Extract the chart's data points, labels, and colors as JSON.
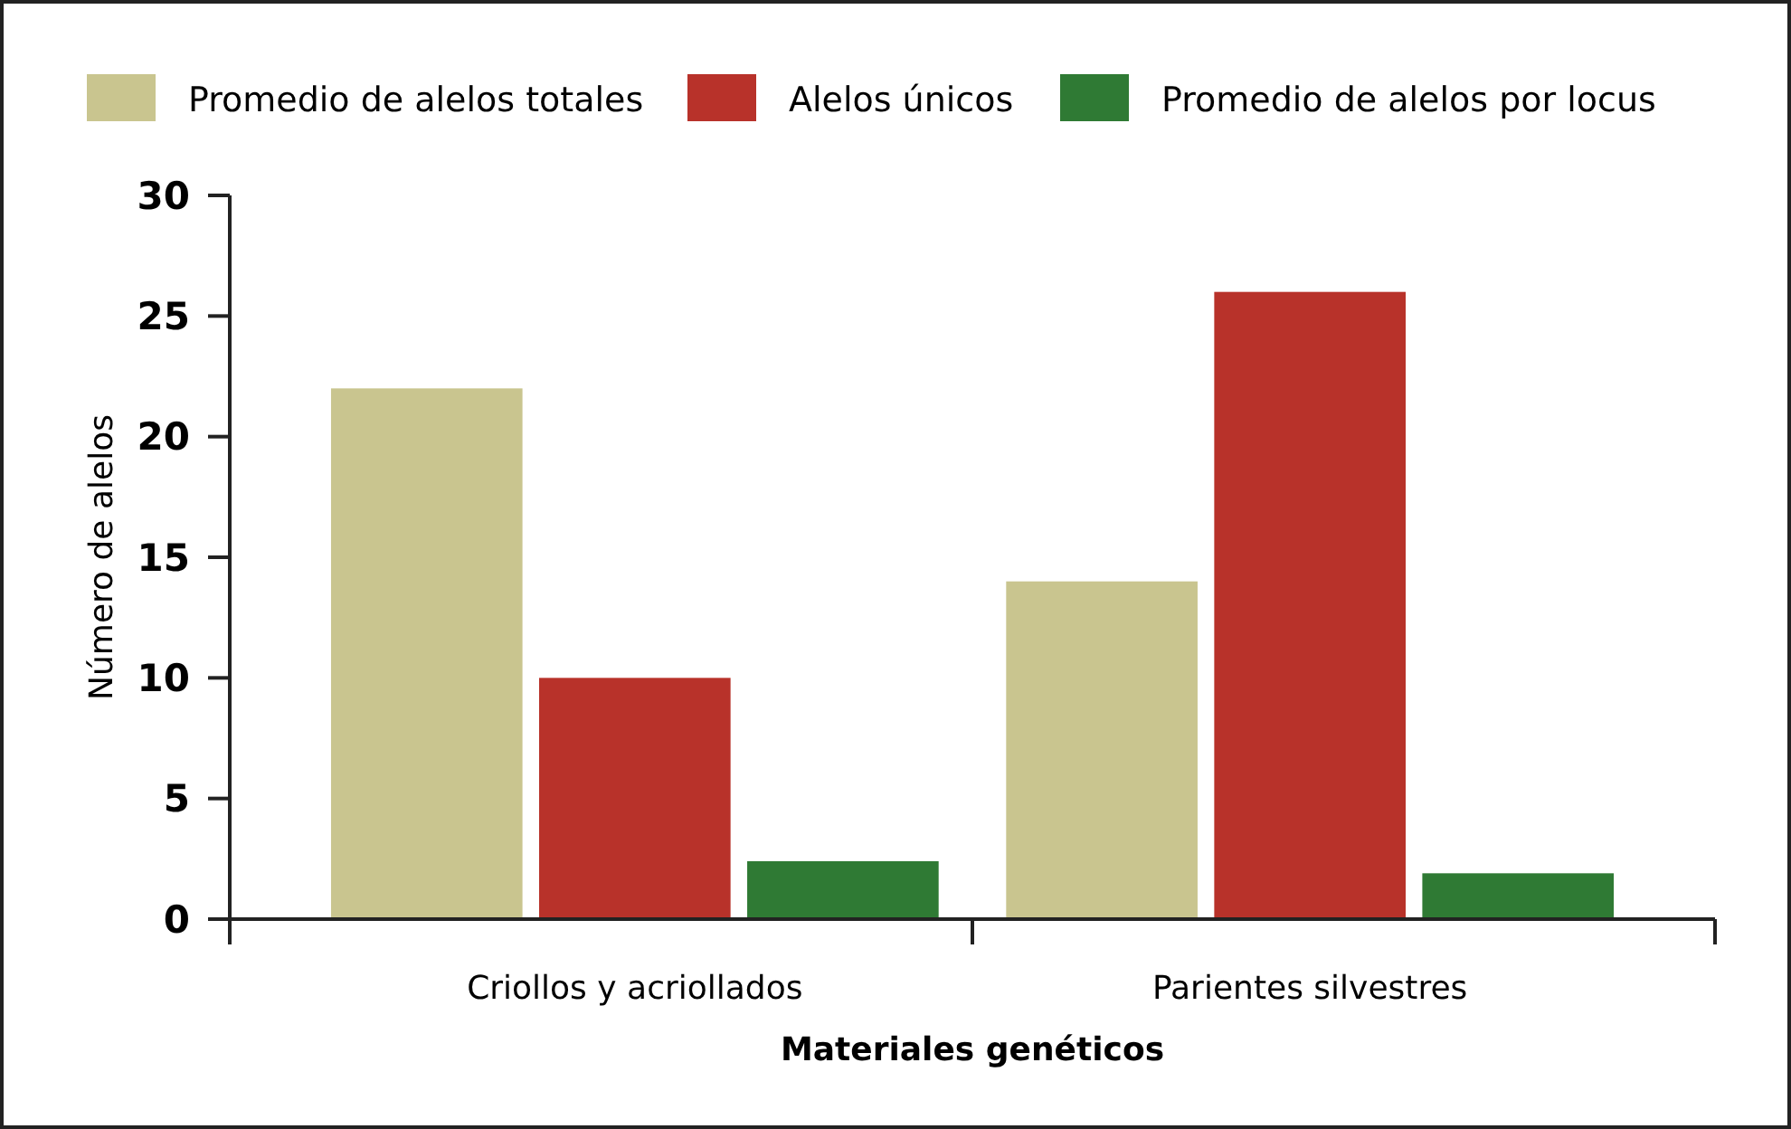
{
  "chart_data": {
    "type": "bar",
    "xlabel": "Materiales genéticos",
    "ylabel": "Número de alelos",
    "categories": [
      "Criollos y acriollados",
      "Parientes silvestres"
    ],
    "series": [
      {
        "name": "Promedio de alelos totales",
        "color": "#c9c58f",
        "values": [
          22,
          14
        ]
      },
      {
        "name": "Alelos únicos",
        "color": "#b8322a",
        "values": [
          10,
          26
        ]
      },
      {
        "name": "Promedio de alelos por locus",
        "color": "#2f7a34",
        "values": [
          2.4,
          1.9
        ]
      }
    ],
    "ylim": [
      0,
      30
    ],
    "yticks": [
      0,
      5,
      10,
      15,
      20,
      25,
      30
    ],
    "grid": false,
    "legend": "top"
  }
}
